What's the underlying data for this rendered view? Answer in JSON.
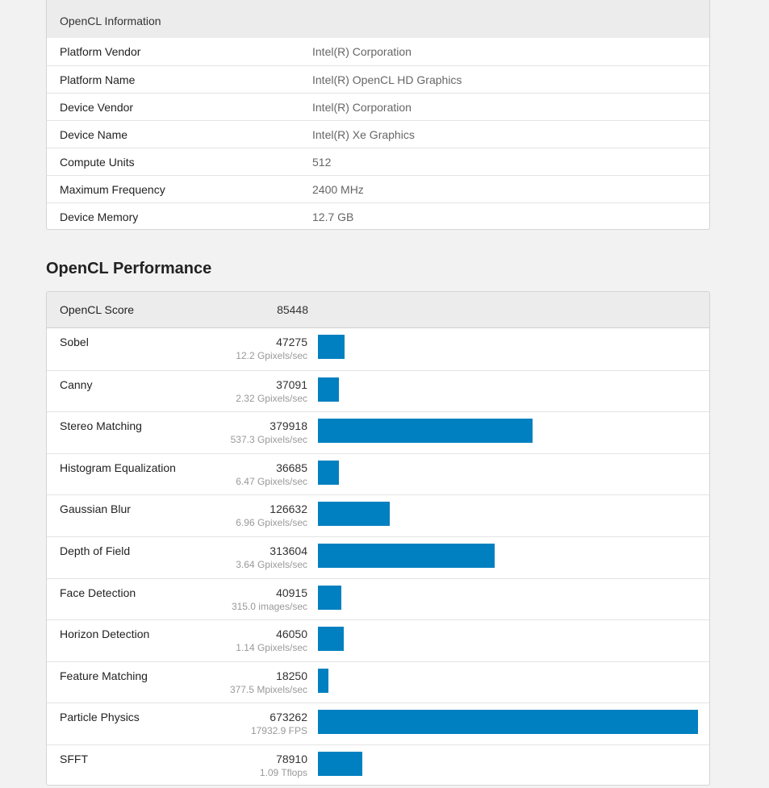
{
  "info": {
    "header": "OpenCL Information",
    "rows": [
      {
        "key": "Platform Vendor",
        "value": "Intel(R) Corporation"
      },
      {
        "key": "Platform Name",
        "value": "Intel(R) OpenCL HD Graphics"
      },
      {
        "key": "Device Vendor",
        "value": "Intel(R) Corporation"
      },
      {
        "key": "Device Name",
        "value": "Intel(R) Xe Graphics"
      },
      {
        "key": "Compute Units",
        "value": "512"
      },
      {
        "key": "Maximum Frequency",
        "value": "2400 MHz"
      },
      {
        "key": "Device Memory",
        "value": "12.7 GB"
      }
    ]
  },
  "performance": {
    "title": "OpenCL Performance",
    "score_label": "OpenCL Score",
    "score_value": "85448",
    "bar_color": "#0080c0",
    "tests": [
      {
        "name": "Sobel",
        "score": 47275,
        "unit": "12.2 Gpixels/sec"
      },
      {
        "name": "Canny",
        "score": 37091,
        "unit": "2.32 Gpixels/sec"
      },
      {
        "name": "Stereo Matching",
        "score": 379918,
        "unit": "537.3 Gpixels/sec"
      },
      {
        "name": "Histogram Equalization",
        "score": 36685,
        "unit": "6.47 Gpixels/sec"
      },
      {
        "name": "Gaussian Blur",
        "score": 126632,
        "unit": "6.96 Gpixels/sec"
      },
      {
        "name": "Depth of Field",
        "score": 313604,
        "unit": "3.64 Gpixels/sec"
      },
      {
        "name": "Face Detection",
        "score": 40915,
        "unit": "315.0 images/sec"
      },
      {
        "name": "Horizon Detection",
        "score": 46050,
        "unit": "1.14 Gpixels/sec"
      },
      {
        "name": "Feature Matching",
        "score": 18250,
        "unit": "377.5 Mpixels/sec"
      },
      {
        "name": "Particle Physics",
        "score": 673262,
        "unit": "17932.9 FPS"
      },
      {
        "name": "SFFT",
        "score": 78910,
        "unit": "1.09 Tflops"
      }
    ]
  }
}
